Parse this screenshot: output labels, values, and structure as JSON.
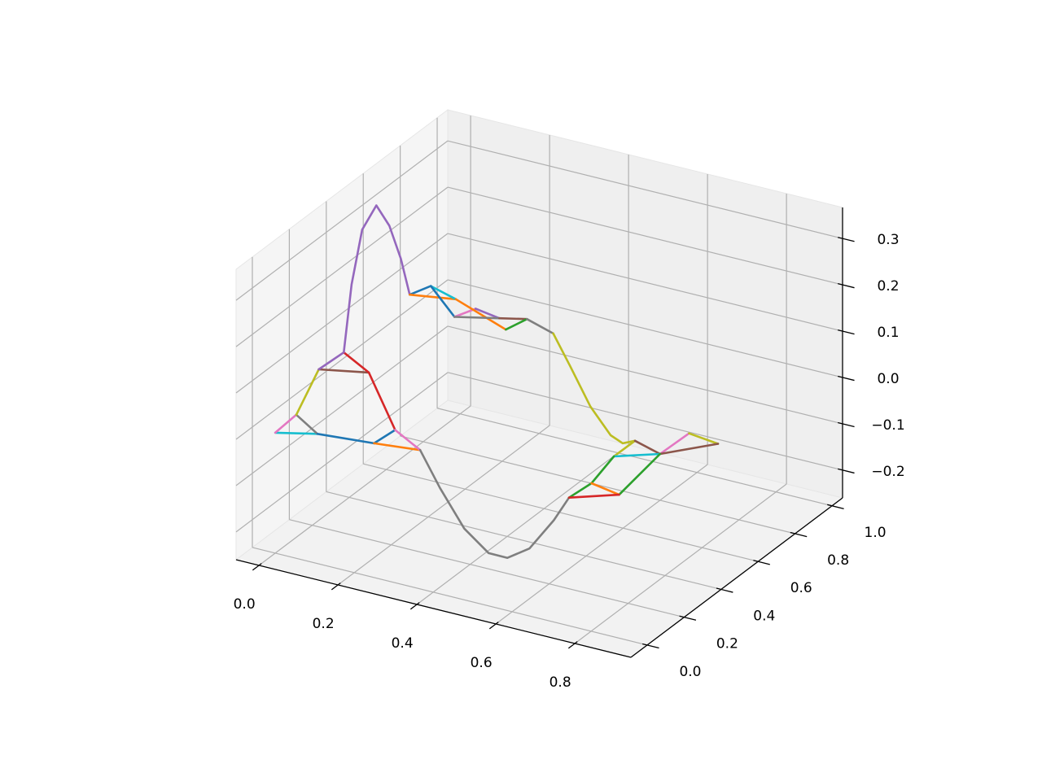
{
  "chart_data": {
    "type": "line3d",
    "xlim": [
      -0.058,
      0.942
    ],
    "ylim": [
      -0.088,
      1.057
    ],
    "zlim": [
      -0.26,
      0.367
    ],
    "xticks": [
      {
        "value": 0,
        "label": "0.0"
      },
      0.2,
      0.4,
      0.6,
      0.8
    ],
    "yticks": [
      {
        "value": 0,
        "label": "0.0"
      },
      0.2,
      0.4,
      0.6,
      0.8,
      {
        "value": 1,
        "label": "1.0"
      }
    ],
    "zticks": [
      {
        "value": -0.2,
        "label": "−0.2"
      },
      {
        "value": -0.1,
        "label": "−0.1"
      },
      {
        "value": 0,
        "label": "0.0"
      },
      0.1,
      0.2,
      0.3
    ],
    "grid": true,
    "series": [
      {
        "color": "#17becf",
        "x": [
          0,
          0.06
        ],
        "y": [
          0,
          0.1
        ],
        "z": [
          0,
          -0.02
        ]
      },
      {
        "color": "#e377c2",
        "x": [
          0,
          0.03
        ],
        "y": [
          0,
          0.05
        ],
        "z": [
          0,
          0.03
        ]
      },
      {
        "color": "#7f7f7f",
        "x": [
          0.03,
          0.06
        ],
        "y": [
          0.05,
          0.1
        ],
        "z": [
          0.03,
          -0.02
        ]
      },
      {
        "color": "#1f77b4",
        "x": [
          0.06,
          0.18
        ],
        "y": [
          0.1,
          0.15
        ],
        "z": [
          -0.02,
          -0.03
        ]
      },
      {
        "color": "#bcbd22",
        "x": [
          0.03,
          0.04
        ],
        "y": [
          0.05,
          0.15
        ],
        "z": [
          0.03,
          0.1
        ]
      },
      {
        "color": "#8c564b",
        "x": [
          0.04,
          0.12
        ],
        "y": [
          0.15,
          0.25
        ],
        "z": [
          0.1,
          0.08
        ]
      },
      {
        "color": "#9467bd",
        "x": [
          0.04,
          0.08
        ],
        "y": [
          0.15,
          0.2
        ],
        "z": [
          0.1,
          0.13
        ]
      },
      {
        "color": "#d62728",
        "x": [
          0.08,
          0.12,
          0.21
        ],
        "y": [
          0.2,
          0.25,
          0.2
        ],
        "z": [
          0.13,
          0.08,
          -0.01
        ]
      },
      {
        "color": "#1f77b4",
        "x": [
          0.21,
          0.18
        ],
        "y": [
          0.2,
          0.15
        ],
        "z": [
          -0.01,
          -0.03
        ]
      },
      {
        "color": "#ff7f0e",
        "x": [
          0.18,
          0.25
        ],
        "y": [
          0.15,
          0.25
        ],
        "z": [
          -0.03,
          -0.06
        ]
      },
      {
        "color": "#e377c2",
        "x": [
          0.21,
          0.25
        ],
        "y": [
          0.2,
          0.25
        ],
        "z": [
          -0.01,
          -0.06
        ]
      },
      {
        "color": "#7f7f7f",
        "x": [
          0.25,
          0.3,
          0.385,
          0.447,
          0.471,
          0.494,
          0.509,
          0.51
        ],
        "y": [
          0.25,
          0.25,
          0.2,
          0.2,
          0.25,
          0.32,
          0.42,
          0.5
        ],
        "z": [
          -0.06,
          -0.131,
          -0.186,
          -0.226,
          -0.246,
          -0.242,
          -0.208,
          -0.183
        ]
      },
      {
        "color": "#9467bd",
        "x": [
          0.08,
          0.053,
          0.033,
          0.022,
          0.055,
          0.098,
          0.13
        ],
        "y": [
          0.2,
          0.3,
          0.4,
          0.5,
          0.5,
          0.47,
          0.45
        ],
        "z": [
          0.13,
          0.241,
          0.325,
          0.345,
          0.308,
          0.255,
          0.19
        ]
      },
      {
        "color": "#1f77b4",
        "x": [
          0.13,
          0.16
        ],
        "y": [
          0.45,
          0.5
        ],
        "z": [
          0.19,
          0.2
        ]
      },
      {
        "color": "#ff7f0e",
        "x": [
          0.13,
          0.2
        ],
        "y": [
          0.45,
          0.55
        ],
        "z": [
          0.19,
          0.165
        ]
      },
      {
        "color": "#17becf",
        "x": [
          0.16,
          0.2
        ],
        "y": [
          0.5,
          0.55
        ],
        "z": [
          0.2,
          0.165
        ]
      },
      {
        "color": "#1f77b4",
        "x": [
          0.16,
          0.22
        ],
        "y": [
          0.5,
          0.5
        ],
        "z": [
          0.2,
          0.146
        ]
      },
      {
        "color": "#e377c2",
        "x": [
          0.22,
          0.25
        ],
        "y": [
          0.5,
          0.55
        ],
        "z": [
          0.146,
          0.155
        ]
      },
      {
        "color": "#9467bd",
        "x": [
          0.25,
          0.31
        ],
        "y": [
          0.55,
          0.55
        ],
        "z": [
          0.155,
          0.147
        ]
      },
      {
        "color": "#ff7f0e",
        "x": [
          0.2,
          0.35
        ],
        "y": [
          0.55,
          0.5
        ],
        "z": [
          0.165,
          0.146
        ]
      },
      {
        "color": "#7f7f7f",
        "x": [
          0.22,
          0.31
        ],
        "y": [
          0.5,
          0.55
        ],
        "z": [
          0.146,
          0.147
        ]
      },
      {
        "color": "#8c564b",
        "x": [
          0.31,
          0.38
        ],
        "y": [
          0.55,
          0.55
        ],
        "z": [
          0.147,
          0.16
        ]
      },
      {
        "color": "#2ca02c",
        "x": [
          0.35,
          0.38
        ],
        "y": [
          0.5,
          0.55
        ],
        "z": [
          0.146,
          0.16
        ]
      },
      {
        "color": "#7f7f7f",
        "x": [
          0.38,
          0.47
        ],
        "y": [
          0.55,
          0.5
        ],
        "z": [
          0.16,
          0.163
        ]
      },
      {
        "color": "#bcbd22",
        "x": [
          0.47,
          0.489,
          0.508,
          0.531,
          0.543,
          0.56
        ],
        "y": [
          0.5,
          0.55,
          0.62,
          0.68,
          0.72,
          0.75
        ],
        "z": [
          0.163,
          0.082,
          -0.023,
          -0.098,
          -0.125,
          -0.125
        ]
      },
      {
        "color": "#bcbd22",
        "x": [
          0.56,
          0.53
        ],
        "y": [
          0.75,
          0.7
        ],
        "z": [
          -0.125,
          -0.15
        ]
      },
      {
        "color": "#8c564b",
        "x": [
          0.56,
          0.6
        ],
        "y": [
          0.75,
          0.8
        ],
        "z": [
          -0.125,
          -0.16
        ]
      },
      {
        "color": "#17becf",
        "x": [
          0.53,
          0.6
        ],
        "y": [
          0.7,
          0.8
        ],
        "z": [
          -0.15,
          -0.16
        ]
      },
      {
        "color": "#e377c2",
        "x": [
          0.6,
          0.65
        ],
        "y": [
          0.8,
          0.85
        ],
        "z": [
          -0.16,
          -0.12
        ]
      },
      {
        "color": "#bcbd22",
        "x": [
          0.65,
          0.7
        ],
        "y": [
          0.85,
          0.9
        ],
        "z": [
          -0.12,
          -0.147
        ]
      },
      {
        "color": "#8c564b",
        "x": [
          0.6,
          0.7
        ],
        "y": [
          0.8,
          0.9
        ],
        "z": [
          -0.16,
          -0.147
        ]
      },
      {
        "color": "#2ca02c",
        "x": [
          0.53,
          0.52,
          0.51
        ],
        "y": [
          0.7,
          0.6,
          0.5
        ],
        "z": [
          -0.15,
          -0.18,
          -0.183
        ]
      },
      {
        "color": "#2ca02c",
        "x": [
          0.6,
          0.59
        ],
        "y": [
          0.8,
          0.6
        ],
        "z": [
          -0.16,
          -0.19
        ]
      },
      {
        "color": "#ff7f0e",
        "x": [
          0.52,
          0.59
        ],
        "y": [
          0.6,
          0.6
        ],
        "z": [
          -0.18,
          -0.19
        ]
      },
      {
        "color": "#d62728",
        "x": [
          0.51,
          0.59
        ],
        "y": [
          0.5,
          0.6
        ],
        "z": [
          -0.183,
          -0.19
        ]
      }
    ]
  }
}
